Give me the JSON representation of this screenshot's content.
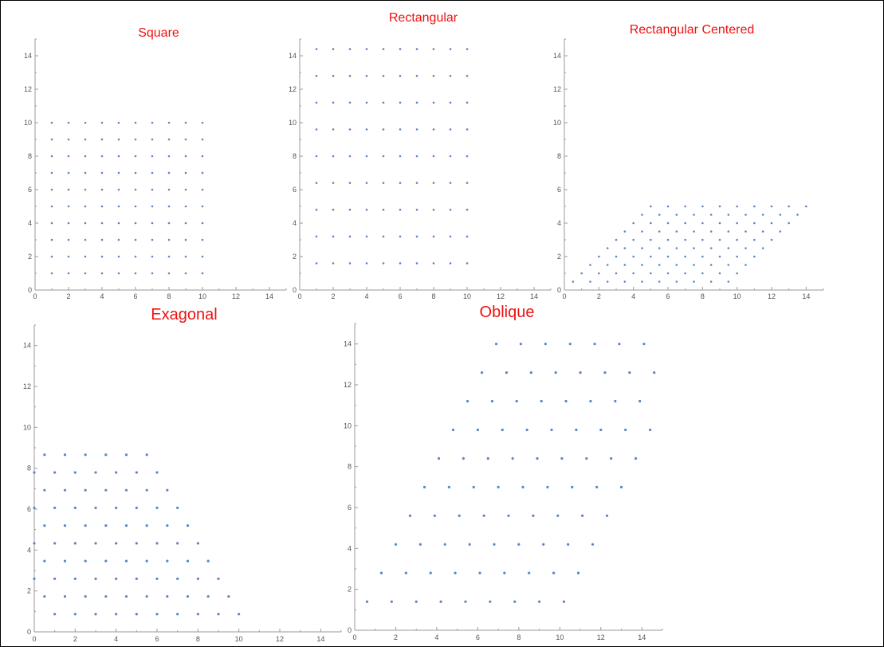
{
  "chart_data": [
    {
      "type": "scatter",
      "title": "Square",
      "xlim": [
        0,
        15
      ],
      "ylim": [
        0,
        15
      ],
      "xticks": [
        "0",
        "2",
        "4",
        "6",
        "8",
        "10",
        "12",
        "14"
      ],
      "yticks": [
        "0",
        "2",
        "4",
        "6",
        "8",
        "10",
        "12",
        "14"
      ],
      "lattice": {
        "origin": [
          1,
          1
        ],
        "a": [
          1,
          0
        ],
        "b": [
          0,
          1
        ],
        "na": 10,
        "nb": 10
      },
      "point_color": "#5b87c0"
    },
    {
      "type": "scatter",
      "title": "Rectangular",
      "xlim": [
        0,
        15
      ],
      "ylim": [
        0,
        15
      ],
      "xticks": [
        "0",
        "2",
        "4",
        "6",
        "8",
        "10",
        "12",
        "14"
      ],
      "yticks": [
        "0",
        "2",
        "4",
        "6",
        "8",
        "10",
        "12",
        "14"
      ],
      "lattice": {
        "origin": [
          1,
          1.6
        ],
        "a": [
          1,
          0
        ],
        "b": [
          0,
          1.6
        ],
        "na": 10,
        "nb": 9
      },
      "point_color": "#5b87c0"
    },
    {
      "type": "scatter",
      "title": "Rectangular Centered",
      "xlim": [
        0,
        15
      ],
      "ylim": [
        0,
        15
      ],
      "xticks": [
        "0",
        "2",
        "4",
        "6",
        "8",
        "10",
        "12",
        "14"
      ],
      "yticks": [
        "0",
        "2",
        "4",
        "6",
        "8",
        "10",
        "12",
        "14"
      ],
      "lattice": {
        "origin": [
          0.5,
          0.5
        ],
        "a": [
          1,
          0
        ],
        "b": [
          0.5,
          0.5
        ],
        "na": 10,
        "nb": 10
      },
      "point_color": "#5b87c0"
    },
    {
      "type": "scatter",
      "title": "Exagonal",
      "xlim": [
        0,
        15
      ],
      "ylim": [
        0,
        15
      ],
      "xticks": [
        "0",
        "2",
        "4",
        "6",
        "8",
        "10",
        "12",
        "14"
      ],
      "yticks": [
        "0",
        "2",
        "4",
        "6",
        "8",
        "10",
        "12",
        "14"
      ],
      "lattice": {
        "origin": [
          1,
          0.866
        ],
        "a": [
          1,
          0
        ],
        "b": [
          -0.5,
          0.866
        ],
        "na": 10,
        "nb": 10
      },
      "point_color": "#5b87c0"
    },
    {
      "type": "scatter",
      "title": "Oblique",
      "xlim": [
        0,
        15
      ],
      "ylim": [
        0,
        15
      ],
      "xticks": [
        "0",
        "2",
        "4",
        "6",
        "8",
        "10",
        "12",
        "14"
      ],
      "yticks": [
        "0",
        "2",
        "4",
        "6",
        "8",
        "10",
        "12",
        "14"
      ],
      "lattice": {
        "origin": [
          0.6,
          1.4
        ],
        "a": [
          1.2,
          0
        ],
        "b": [
          0.7,
          1.4
        ],
        "na": 9,
        "nb": 10
      },
      "point_color": "#5b87c0"
    }
  ]
}
